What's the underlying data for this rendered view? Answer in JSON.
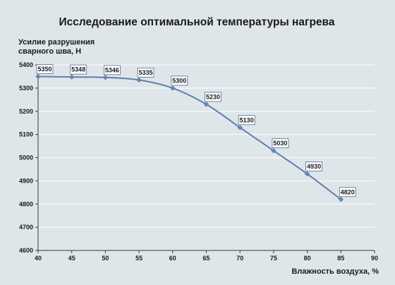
{
  "chart_data": {
    "type": "line",
    "title": "Исследование оптимальной температуры нагрева",
    "ylabel_lines": [
      "Усилие разрушения",
      "сварного шва, Н"
    ],
    "xlabel": "Влажность воздуха, %",
    "xlim": [
      40,
      90
    ],
    "ylim": [
      4600,
      5400
    ],
    "xticks": [
      40,
      45,
      50,
      55,
      60,
      65,
      70,
      75,
      80,
      85,
      90
    ],
    "yticks": [
      4600,
      4700,
      4800,
      4900,
      5000,
      5100,
      5200,
      5300,
      5400
    ],
    "grid": true,
    "series": [
      {
        "x": [
          40,
          45,
          50,
          55,
          60,
          65,
          70,
          75,
          80,
          85
        ],
        "values": [
          5350,
          5348,
          5346,
          5335,
          5300,
          5230,
          5130,
          5030,
          4930,
          4820
        ],
        "data_labels": [
          "5350",
          "5348",
          "5346",
          "5335",
          "5300",
          "5230",
          "5130",
          "5030",
          "4930",
          "4820"
        ]
      }
    ],
    "colors": {
      "background": "#dfe6ea",
      "grid": "#ffffff",
      "line": "#5f7eaa",
      "marker": "#6e8ab5"
    }
  }
}
